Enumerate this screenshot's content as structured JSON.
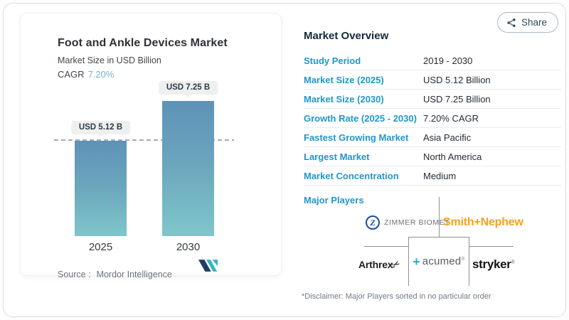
{
  "share": {
    "label": "Share"
  },
  "chart_card": {
    "title": "Foot and Ankle Devices Market",
    "subtitle": "Market Size in USD Billion",
    "cagr_label": "CAGR",
    "cagr_value": "7.20%",
    "source_prefix": "Source :",
    "source_name": "Mordor Intelligence"
  },
  "chart_data": {
    "type": "bar",
    "title": "Foot and Ankle Devices Market",
    "subtitle": "Market Size in USD Billion",
    "unit": "USD Billion",
    "cagr": "7.20%",
    "categories": [
      "2025",
      "2030"
    ],
    "values": [
      5.12,
      7.25
    ],
    "bar_labels": [
      "USD 5.12 B",
      "USD 7.25 B"
    ],
    "ylim": [
      0,
      7.25
    ],
    "reference_line": {
      "y": 5.12,
      "style": "dashed"
    },
    "bar_gradient": [
      "#5e92b7",
      "#7fc6ca"
    ],
    "legend": "none",
    "grid": "off"
  },
  "overview": {
    "title": "Market Overview",
    "rows": [
      {
        "label": "Study Period",
        "value": "2019 - 2030"
      },
      {
        "label": "Market Size (2025)",
        "value": "USD 5.12 Billion"
      },
      {
        "label": "Market Size (2030)",
        "value": "USD 7.25 Billion"
      },
      {
        "label": "Growth Rate (2025 - 2030)",
        "value": "7.20% CAGR"
      },
      {
        "label": "Fastest Growing Market",
        "value": "Asia Pacific"
      },
      {
        "label": "Largest Market",
        "value": "North America"
      },
      {
        "label": "Market Concentration",
        "value": "Medium"
      }
    ],
    "major_players_label": "Major Players",
    "players": {
      "zimmer_biomet": {
        "monogram": "Z",
        "label": "ZIMMER BIOMET"
      },
      "smith_nephew": {
        "label": "Smith+Nephew"
      },
      "arthrex": {
        "label": "Arthrex",
        "icon": "scissors"
      },
      "acumed": {
        "plus": "+",
        "label": "acumed",
        "reg": "®"
      },
      "stryker": {
        "label": "stryker",
        "reg": "®"
      }
    },
    "disclaimer": "*Disclaimer: Major Players sorted in no particular order"
  },
  "colors": {
    "accent_blue": "#2196cb",
    "cagr_blue": "#74b2c6",
    "bar_top": "#5e92b7",
    "bar_bottom": "#7fc6ca",
    "smith_nephew_orange": "#f7a11a",
    "zimmer_blue": "#1c4da0",
    "acumed_blue": "#29abe2",
    "grid_line_gray": "#8c9093"
  }
}
